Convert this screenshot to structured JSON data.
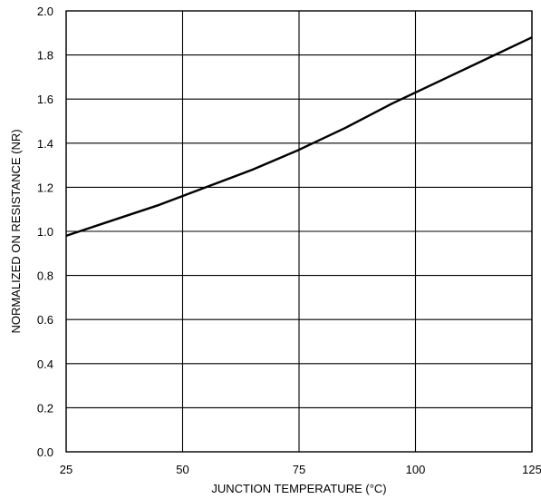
{
  "chart_data": {
    "type": "line",
    "xlabel": "JUNCTION TEMPERATURE (°C)",
    "ylabel": "NORMALIZED ON RESISTANCE (NR)",
    "xlim": [
      25,
      125
    ],
    "ylim": [
      0.0,
      2.0
    ],
    "x_ticks": [
      "25",
      "50",
      "75",
      "100",
      "125"
    ],
    "y_ticks": [
      "0.0",
      "0.2",
      "0.4",
      "0.6",
      "0.8",
      "1.0",
      "1.2",
      "1.4",
      "1.6",
      "1.8",
      "2.0"
    ],
    "grid": true,
    "series": [
      {
        "x": [
          25,
          35,
          45,
          55,
          65,
          75,
          85,
          95,
          105,
          115,
          125
        ],
        "y": [
          0.98,
          1.05,
          1.12,
          1.2,
          1.28,
          1.37,
          1.47,
          1.58,
          1.68,
          1.78,
          1.88
        ]
      }
    ]
  }
}
